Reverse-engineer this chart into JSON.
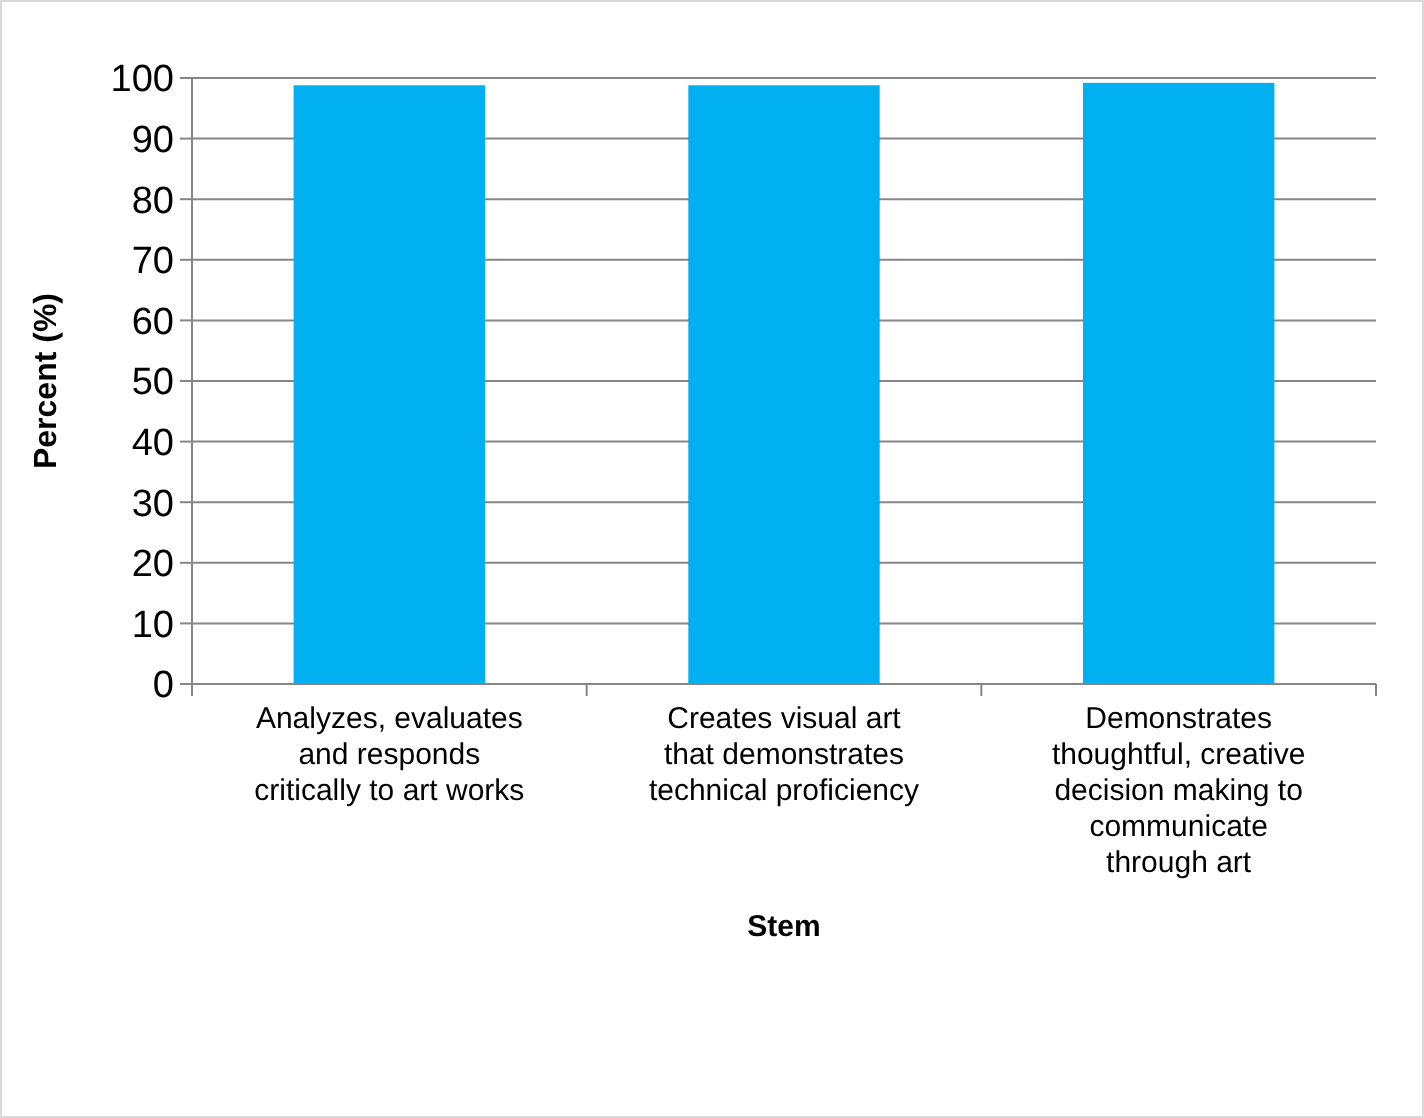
{
  "chart_data": {
    "type": "bar",
    "xlabel": "Stem",
    "ylabel": "Percent (%)",
    "categories": [
      "Analyzes, evaluates\nand responds\ncritically to art works",
      "Creates visual art\nthat demonstrates\ntechnical proficiency",
      "Demonstrates\nthoughtful, creative\ndecision making to\ncommunicate\nthrough art"
    ],
    "values": [
      98.8,
      98.8,
      99.2
    ],
    "color": "#00b0f0",
    "ylim": [
      0,
      100
    ],
    "yticks": [
      0,
      10,
      20,
      30,
      40,
      50,
      60,
      70,
      80,
      90,
      100
    ],
    "grid": "y"
  }
}
